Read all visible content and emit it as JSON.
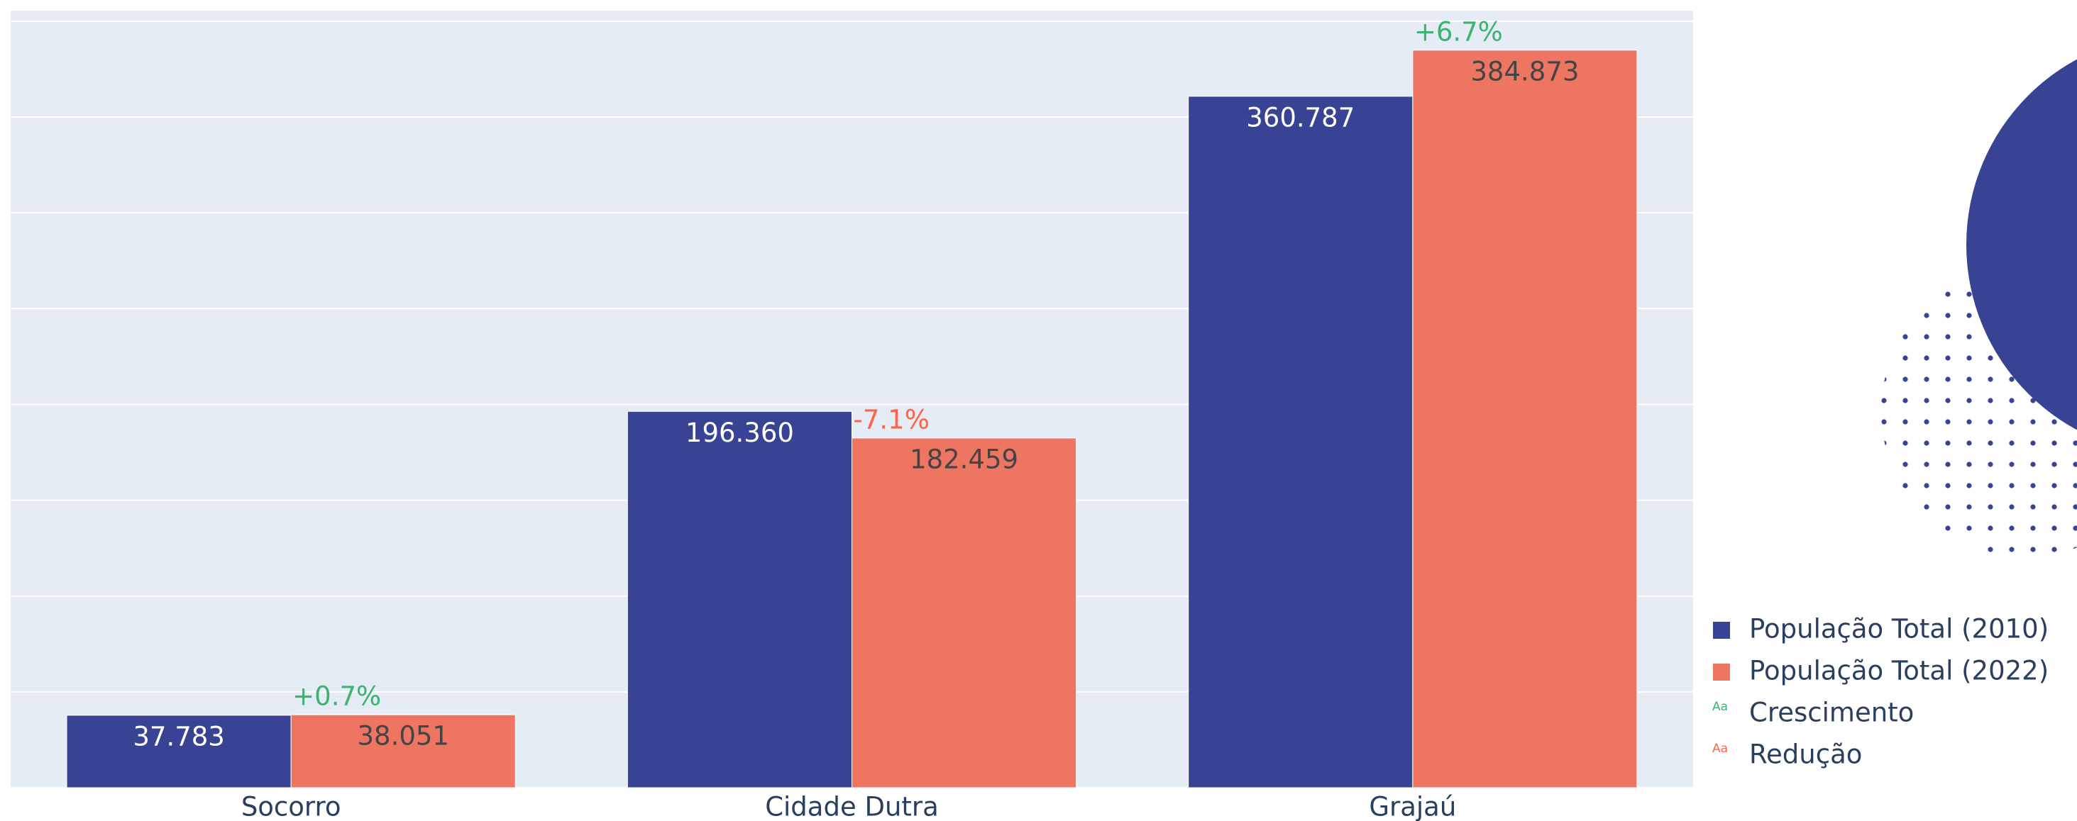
{
  "chart_data": {
    "type": "bar",
    "categories": [
      "Socorro",
      "Cidade Dutra",
      "Grajaú"
    ],
    "series": [
      {
        "name": "População Total (2010)",
        "color": "#394393",
        "label_color": "#ffffff",
        "values": [
          37783,
          196360,
          360787
        ],
        "value_labels": [
          "37.783",
          "196.360",
          "360.787"
        ]
      },
      {
        "name": "População Total (2022)",
        "color": "#ee7562",
        "label_color": "#444444",
        "values": [
          38051,
          182459,
          384873
        ],
        "value_labels": [
          "38.051",
          "182.459",
          "384.873"
        ]
      }
    ],
    "annotations": [
      {
        "text": "+0.7%",
        "value": 0.7
      },
      {
        "text": "-7.1%",
        "value": -7.1
      },
      {
        "text": "+6.7%",
        "value": 6.7
      }
    ],
    "annotation_legend": [
      {
        "name": "Crescimento",
        "color": "#3cb371",
        "icon": "Aa"
      },
      {
        "name": "Redução",
        "color": "#ff6347",
        "icon": "Aa"
      }
    ],
    "ylim": [
      0,
      405500
    ],
    "yticks": [
      0,
      50000,
      100000,
      150000,
      200000,
      250000,
      300000,
      350000,
      400000
    ],
    "show_ytick_labels": false,
    "grid": true,
    "background": "#e5ecf6"
  }
}
